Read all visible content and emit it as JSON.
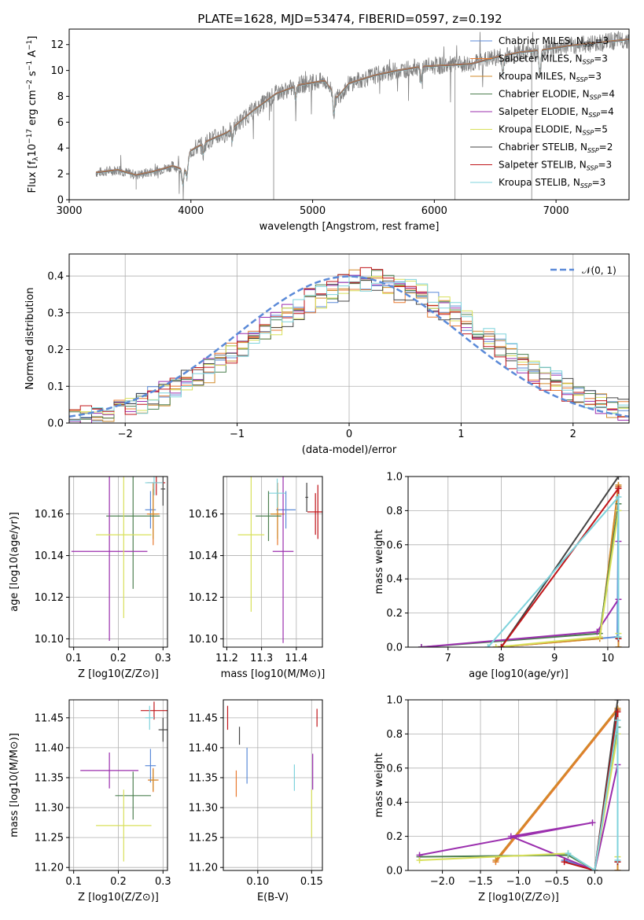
{
  "title": "PLATE=1628, MJD=53474, FIBERID=0597, z=0.192",
  "colors": {
    "Chabrier MILES": "#5b8ad8",
    "Salpeter MILES": "#e87a30",
    "Kroupa MILES": "#d18a2a",
    "Chabrier ELODIE": "#4d8050",
    "Salpeter ELODIE": "#9b2fae",
    "Kroupa ELODIE": "#d8e05a",
    "Chabrier STELIB": "#444444",
    "Salpeter STELIB": "#c0161a",
    "Kroupa STELIB": "#7fd3dc",
    "normal": "#5b8ad8"
  },
  "chart_data": [
    {
      "type": "line",
      "name": "spectrum",
      "title": "PLATE=1628, MJD=53474, FIBERID=0597, z=0.192",
      "xlabel": "wavelength [Angstrom, rest frame]",
      "ylabel": "Flux [f_λ 10^-17 erg cm^-2 s^-1 A^-1]",
      "xlim": [
        3000,
        7600
      ],
      "ylim": [
        0,
        13.2
      ],
      "xticks": [
        "3000",
        "4000",
        "5000",
        "6000",
        "7000"
      ],
      "yticks": [
        "0",
        "2",
        "4",
        "6",
        "8",
        "10",
        "12"
      ],
      "grid": false,
      "legend_position": "top-right",
      "legend": [
        {
          "label": "Chabrier MILES, N",
          "sub": "SSP",
          "suffix": "=3",
          "key": "Chabrier MILES"
        },
        {
          "label": "Salpeter MILES, N",
          "sub": "SSP",
          "suffix": "=3",
          "key": "Salpeter MILES"
        },
        {
          "label": "Kroupa MILES, N",
          "sub": "SSP",
          "suffix": "=3",
          "key": "Kroupa MILES"
        },
        {
          "label": "Chabrier ELODIE, N",
          "sub": "SSP",
          "suffix": "=4",
          "key": "Chabrier ELODIE"
        },
        {
          "label": "Salpeter ELODIE, N",
          "sub": "SSP",
          "suffix": "=4",
          "key": "Salpeter ELODIE"
        },
        {
          "label": "Kroupa ELODIE, N",
          "sub": "SSP",
          "suffix": "=5",
          "key": "Kroupa ELODIE"
        },
        {
          "label": "Chabrier STELIB, N",
          "sub": "SSP",
          "suffix": "=2",
          "key": "Chabrier STELIB"
        },
        {
          "label": "Salpeter STELIB, N",
          "sub": "SSP",
          "suffix": "=3",
          "key": "Salpeter STELIB"
        },
        {
          "label": "Kroupa STELIB, N",
          "sub": "SSP",
          "suffix": "=3",
          "key": "Kroupa STELIB"
        }
      ],
      "continuum": [
        [
          3220,
          2.1
        ],
        [
          3400,
          2.3
        ],
        [
          3550,
          1.9
        ],
        [
          3700,
          2.2
        ],
        [
          3850,
          2.6
        ],
        [
          3950,
          2.3
        ],
        [
          4000,
          3.8
        ],
        [
          4150,
          4.6
        ],
        [
          4300,
          5.2
        ],
        [
          4500,
          6.8
        ],
        [
          4700,
          8.2
        ],
        [
          4900,
          8.9
        ],
        [
          5100,
          9.2
        ],
        [
          5200,
          7.9
        ],
        [
          5300,
          9.0
        ],
        [
          5500,
          9.6
        ],
        [
          5700,
          10.0
        ],
        [
          5900,
          10.3
        ],
        [
          6100,
          10.4
        ],
        [
          6300,
          10.5
        ],
        [
          6500,
          11.0
        ],
        [
          6700,
          11.4
        ],
        [
          6900,
          11.6
        ],
        [
          7100,
          11.9
        ],
        [
          7300,
          12.1
        ],
        [
          7600,
          12.4
        ]
      ],
      "data_xrange": [
        3220,
        7600
      ]
    },
    {
      "type": "step",
      "name": "residual histogram",
      "xlabel": "(data-model)/error",
      "ylabel": "Normed distribution",
      "xlim": [
        -2.5,
        2.5
      ],
      "ylim": [
        0,
        0.46
      ],
      "xticks": [
        "−2",
        "−1",
        "0",
        "1",
        "2"
      ],
      "yticks": [
        "0.0",
        "0.1",
        "0.2",
        "0.3",
        "0.4"
      ],
      "grid": true,
      "legend_position": "top-right",
      "legend": [
        {
          "label": "𝒩(0, 1)",
          "key": "normal"
        }
      ],
      "bin_width": 0.1
    },
    {
      "type": "errorbar",
      "name": "age vs Z",
      "xlabel": "Z [log10(Z/Z⊙)]",
      "ylabel": "age  [log10(age/yr)]",
      "xlim": [
        0.09,
        0.31
      ],
      "ylim": [
        10.096,
        10.178
      ],
      "xticks": [
        "0.1",
        "0.2",
        "0.3"
      ],
      "yticks": [
        "10.10",
        "10.12",
        "10.14",
        "10.16"
      ],
      "grid": true,
      "points": [
        {
          "key": "Chabrier MILES",
          "x": 0.272,
          "y": 10.162,
          "xerr": 0.012,
          "yerr": 0.009
        },
        {
          "key": "Salpeter MILES",
          "x": 0.278,
          "y": 10.16,
          "xerr": 0.014,
          "yerr": 0.015
        },
        {
          "key": "Kroupa MILES",
          "x": 0.278,
          "y": 10.16,
          "xerr": 0.01,
          "yerr": 0.012
        },
        {
          "key": "Chabrier ELODIE",
          "x": 0.233,
          "y": 10.159,
          "xerr": 0.06,
          "yerr": 0.035
        },
        {
          "key": "Salpeter ELODIE",
          "x": 0.18,
          "y": 10.142,
          "xerr": 0.085,
          "yerr": 0.043
        },
        {
          "key": "Kroupa ELODIE",
          "x": 0.212,
          "y": 10.15,
          "xerr": 0.062,
          "yerr": 0.04
        },
        {
          "key": "Chabrier STELIB",
          "x": 0.3,
          "y": 10.172,
          "xerr": 0.005,
          "yerr": 0.008
        },
        {
          "key": "Salpeter STELIB",
          "x": 0.285,
          "y": 10.175,
          "xerr": 0.02,
          "yerr": 0.006
        },
        {
          "key": "Kroupa STELIB",
          "x": 0.28,
          "y": 10.175,
          "xerr": 0.02,
          "yerr": 0.006
        }
      ]
    },
    {
      "type": "errorbar",
      "name": "age vs mass",
      "xlabel": "mass [log10(M/M⊙)]",
      "ylabel": "",
      "xlim": [
        11.19,
        11.475
      ],
      "ylim": [
        10.096,
        10.178
      ],
      "xticks": [
        "11.2",
        "11.3",
        "11.4"
      ],
      "yticks": [
        "10.10",
        "10.12",
        "10.14",
        "10.16"
      ],
      "grid": true,
      "points": [
        {
          "key": "Chabrier MILES",
          "x": 11.37,
          "y": 10.162,
          "xerr": 0.028,
          "yerr": 0.009
        },
        {
          "key": "Salpeter MILES",
          "x": 11.346,
          "y": 10.16,
          "xerr": 0.02,
          "yerr": 0.015
        },
        {
          "key": "Kroupa MILES",
          "x": 11.346,
          "y": 10.16,
          "xerr": 0.02,
          "yerr": 0.012
        },
        {
          "key": "Chabrier ELODIE",
          "x": 11.32,
          "y": 10.159,
          "xerr": 0.037,
          "yerr": 0.012
        },
        {
          "key": "Salpeter ELODIE",
          "x": 11.362,
          "y": 10.142,
          "xerr": 0.03,
          "yerr": 0.044
        },
        {
          "key": "Kroupa ELODIE",
          "x": 11.27,
          "y": 10.15,
          "xerr": 0.038,
          "yerr": 0.037
        },
        {
          "key": "Chabrier STELIB",
          "x": 11.43,
          "y": 10.168,
          "xerr": 0.004,
          "yerr": 0.007
        },
        {
          "key": "Salpeter STELIB",
          "x": 11.462,
          "y": 10.161,
          "xerr": 0.03,
          "yerr": 0.013
        },
        {
          "key": "Kroupa STELIB",
          "x": 11.345,
          "y": 10.17,
          "xerr": 0.024,
          "yerr": 0.007
        },
        {
          "key": "Salpeter STELIB",
          "x": 11.455,
          "y": 10.16,
          "xerr": 0.001,
          "yerr": 0.01
        }
      ]
    },
    {
      "type": "line",
      "name": "mass weight vs age",
      "xlabel": "age  [log10(age/yr)]",
      "ylabel": "mass weight",
      "xlim": [
        6.25,
        10.4
      ],
      "ylim": [
        0,
        1
      ],
      "xticks": [
        "7",
        "8",
        "9",
        "10"
      ],
      "yticks": [
        "0.0",
        "0.2",
        "0.4",
        "0.6",
        "0.8",
        "1.0"
      ],
      "grid": true,
      "series": [
        {
          "key": "Chabrier MILES",
          "x": [
            7.9,
            10.18,
            10.2
          ],
          "y": [
            0.0,
            0.06,
            0.94
          ]
        },
        {
          "key": "Salpeter MILES",
          "x": [
            7.9,
            9.85,
            10.2,
            10.2
          ],
          "y": [
            0.0,
            0.05,
            0.94,
            0.0
          ]
        },
        {
          "key": "Kroupa MILES",
          "x": [
            7.9,
            9.85,
            10.2,
            10.2
          ],
          "y": [
            0.0,
            0.05,
            0.95,
            0.0
          ]
        },
        {
          "key": "Chabrier ELODIE",
          "x": [
            6.5,
            9.85,
            10.2,
            10.2
          ],
          "y": [
            0.0,
            0.08,
            0.84,
            0.05
          ]
        },
        {
          "key": "Salpeter ELODIE",
          "x": [
            6.5,
            9.8,
            10.2,
            10.2
          ],
          "y": [
            0.0,
            0.09,
            0.28,
            0.62
          ]
        },
        {
          "key": "Kroupa ELODIE",
          "x": [
            7.9,
            9.85,
            10.2,
            10.2,
            10.2
          ],
          "y": [
            0.0,
            0.06,
            0.8,
            0.08,
            0.06
          ]
        },
        {
          "key": "Chabrier STELIB",
          "x": [
            8.0,
            10.2
          ],
          "y": [
            0.0,
            1.0
          ]
        },
        {
          "key": "Salpeter STELIB",
          "x": [
            8.0,
            10.2,
            10.2
          ],
          "y": [
            0.0,
            0.93,
            0.05
          ]
        },
        {
          "key": "Kroupa STELIB",
          "x": [
            7.75,
            10.2,
            10.2
          ],
          "y": [
            0.0,
            0.88,
            0.06
          ]
        }
      ]
    },
    {
      "type": "errorbar",
      "name": "mass vs Z",
      "xlabel": "Z [log10(Z/Z⊙)]",
      "ylabel": "mass [log10(M/M⊙)]",
      "xlim": [
        0.09,
        0.31
      ],
      "ylim": [
        11.195,
        11.48
      ],
      "xticks": [
        "0.1",
        "0.2",
        "0.3"
      ],
      "yticks": [
        "11.20",
        "11.25",
        "11.30",
        "11.35",
        "11.40",
        "11.45"
      ],
      "grid": true,
      "points": [
        {
          "key": "Chabrier MILES",
          "x": 0.272,
          "y": 11.37,
          "xerr": 0.012,
          "yerr": 0.028
        },
        {
          "key": "Salpeter MILES",
          "x": 0.278,
          "y": 11.346,
          "xerr": 0.012,
          "yerr": 0.02
        },
        {
          "key": "Kroupa MILES",
          "x": 0.278,
          "y": 11.346,
          "xerr": 0.01,
          "yerr": 0.018
        },
        {
          "key": "Chabrier ELODIE",
          "x": 0.233,
          "y": 11.32,
          "xerr": 0.04,
          "yerr": 0.04
        },
        {
          "key": "Salpeter ELODIE",
          "x": 0.18,
          "y": 11.362,
          "xerr": 0.065,
          "yerr": 0.03
        },
        {
          "key": "Kroupa ELODIE",
          "x": 0.212,
          "y": 11.27,
          "xerr": 0.062,
          "yerr": 0.06
        },
        {
          "key": "Chabrier STELIB",
          "x": 0.3,
          "y": 11.43,
          "xerr": 0.01,
          "yerr": 0.02
        },
        {
          "key": "Salpeter STELIB",
          "x": 0.28,
          "y": 11.462,
          "xerr": 0.03,
          "yerr": 0.015
        },
        {
          "key": "Kroupa STELIB",
          "x": 0.27,
          "y": 11.45,
          "xerr": 0.01,
          "yerr": 0.02
        }
      ]
    },
    {
      "type": "errorbar",
      "name": "mass vs E(B-V)",
      "xlabel": "E(B-V)",
      "ylabel": "",
      "xlim": [
        0.068,
        0.16
      ],
      "ylim": [
        11.195,
        11.48
      ],
      "xticks": [
        "0.10",
        "0.15"
      ],
      "yticks": [
        "11.20",
        "11.25",
        "11.30",
        "11.35",
        "11.40",
        "11.45"
      ],
      "grid": true,
      "points": [
        {
          "key": "Chabrier MILES",
          "x": 0.09,
          "y": 11.37,
          "xerr": 0,
          "yerr": 0.03
        },
        {
          "key": "Salpeter MILES",
          "x": 0.08,
          "y": 11.34,
          "xerr": 0,
          "yerr": 0.022
        },
        {
          "key": "Chabrier ELODIE",
          "x": 0.083,
          "y": 11.32,
          "xerr": 0,
          "yerr": 0.0
        },
        {
          "key": "Salpeter ELODIE",
          "x": 0.151,
          "y": 11.36,
          "xerr": 0,
          "yerr": 0.03
        },
        {
          "key": "Kroupa ELODIE",
          "x": 0.15,
          "y": 11.29,
          "xerr": 0,
          "yerr": 0.04
        },
        {
          "key": "Chabrier STELIB",
          "x": 0.083,
          "y": 11.42,
          "xerr": 0,
          "yerr": 0.015
        },
        {
          "key": "Salpeter STELIB",
          "x": 0.155,
          "y": 11.45,
          "xerr": 0,
          "yerr": 0.015
        },
        {
          "key": "Kroupa STELIB",
          "x": 0.134,
          "y": 11.35,
          "xerr": 0,
          "yerr": 0.022
        },
        {
          "key": "Salpeter STELIB",
          "x": 0.072,
          "y": 11.45,
          "xerr": 0,
          "yerr": 0.02
        }
      ]
    },
    {
      "type": "line",
      "name": "mass weight vs Z",
      "xlabel": "Z [log10(Z/Z⊙)]",
      "ylabel": "mass weight",
      "xlim": [
        -2.45,
        0.45
      ],
      "ylim": [
        0,
        1
      ],
      "xticks": [
        "−2.0",
        "−1.5",
        "−1.0",
        "−0.5",
        "0.0"
      ],
      "yticks": [
        "0.0",
        "0.2",
        "0.4",
        "0.6",
        "0.8",
        "1.0"
      ],
      "grid": true,
      "series": [
        {
          "key": "Chabrier MILES",
          "x": [
            -0.4,
            0.0,
            0.3
          ],
          "y": [
            0.06,
            0.0,
            0.94
          ]
        },
        {
          "key": "Salpeter MILES",
          "x": [
            -1.3,
            0.3,
            0.3
          ],
          "y": [
            0.05,
            0.94,
            0.0
          ]
        },
        {
          "key": "Kroupa MILES",
          "x": [
            -1.3,
            0.3,
            0.3
          ],
          "y": [
            0.06,
            0.95,
            0.0
          ]
        },
        {
          "key": "Chabrier ELODIE",
          "x": [
            -2.3,
            -0.35,
            0.0,
            0.3,
            0.3
          ],
          "y": [
            0.08,
            0.09,
            0.0,
            0.84,
            0.05
          ]
        },
        {
          "key": "Salpeter ELODIE",
          "x": [
            -2.3,
            -0.03,
            -1.1,
            0.0,
            0.3
          ],
          "y": [
            0.09,
            0.28,
            0.2,
            0.0,
            0.62
          ]
        },
        {
          "key": "Kroupa ELODIE",
          "x": [
            -2.3,
            -0.35,
            0.0,
            0.3,
            0.3
          ],
          "y": [
            0.06,
            0.1,
            0.0,
            0.8,
            0.08
          ]
        },
        {
          "key": "Chabrier STELIB",
          "x": [
            0.0,
            0.3
          ],
          "y": [
            0.0,
            1.0
          ]
        },
        {
          "key": "Salpeter STELIB",
          "x": [
            -0.4,
            0.0,
            0.3,
            0.3
          ],
          "y": [
            0.05,
            0.0,
            0.93,
            0.05
          ]
        },
        {
          "key": "Kroupa STELIB",
          "x": [
            -0.35,
            0.0,
            0.3,
            0.3
          ],
          "y": [
            0.1,
            0.0,
            0.88,
            0.06
          ]
        }
      ]
    }
  ]
}
